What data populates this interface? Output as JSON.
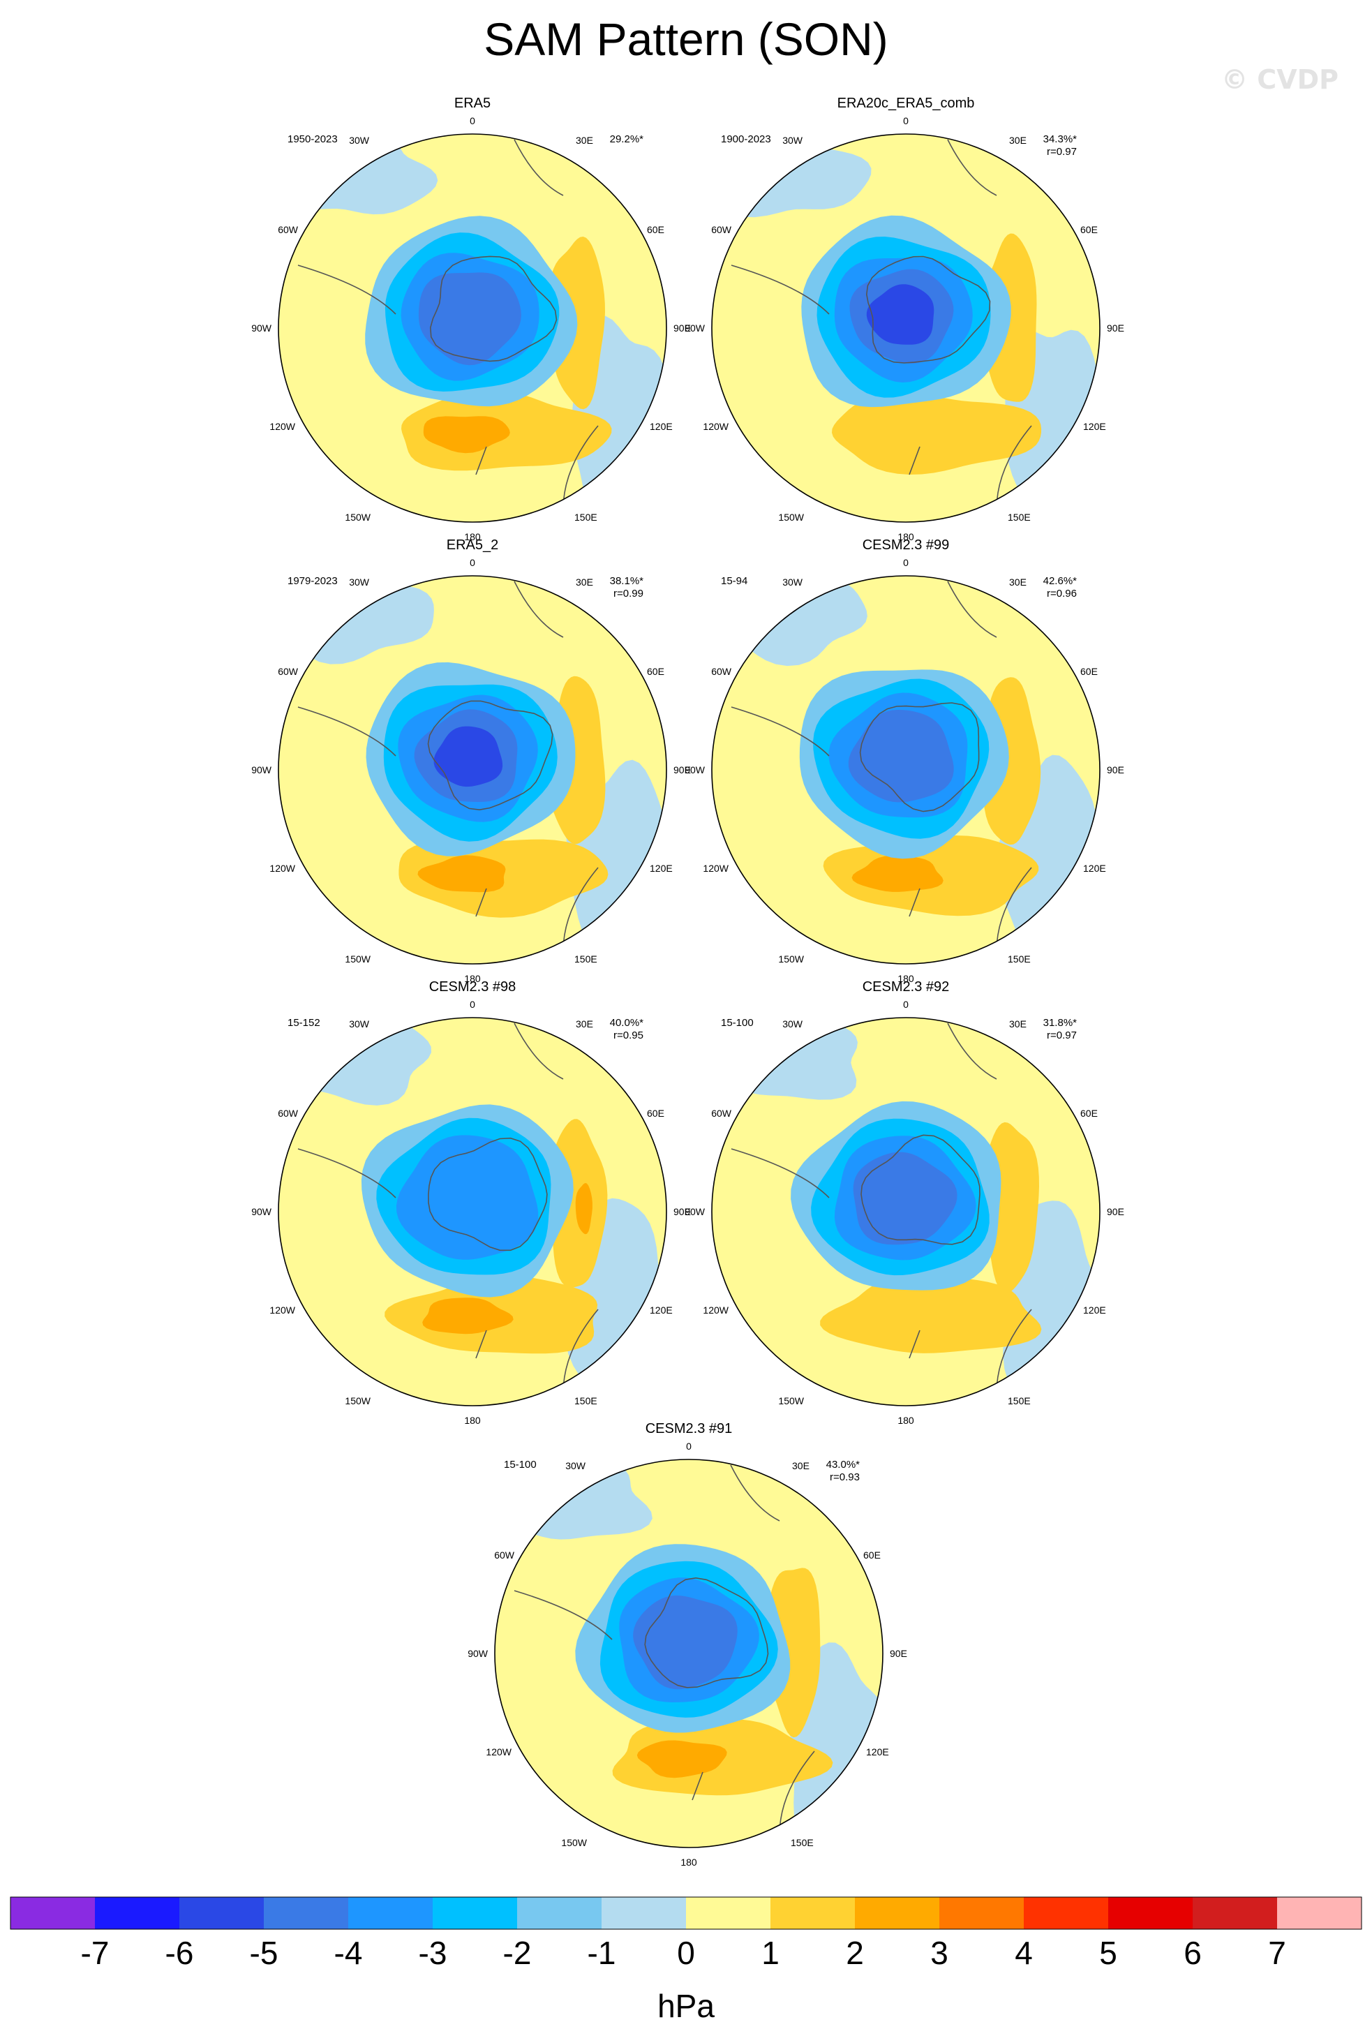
{
  "title": "SAM Pattern (SON)",
  "watermark": "© CVDP",
  "unit_label": "hPa",
  "colorbar": {
    "ticks": [
      "-7",
      "-6",
      "-5",
      "-4",
      "-3",
      "-2",
      "-1",
      "0",
      "1",
      "2",
      "3",
      "4",
      "5",
      "6",
      "7"
    ],
    "colors": [
      "#8a2be2",
      "#1a1aff",
      "#2a48e6",
      "#3a7ae6",
      "#1e96ff",
      "#00c0ff",
      "#78c8f0",
      "#b4dcf0",
      "#fffa96",
      "#ffd232",
      "#ffaa00",
      "#ff7800",
      "#ff3200",
      "#e60000",
      "#d21e1e",
      "#ffb4b4"
    ]
  },
  "map_labels": {
    "top": "0",
    "bottom": "180",
    "left": "90W",
    "right": "90E",
    "ul1": "30W",
    "ul2": "60W",
    "ur1": "30E",
    "ur2": "60E",
    "ll1": "120W",
    "ll2": "150W",
    "lr1": "120E",
    "lr2": "150E"
  },
  "chart_data": [
    {
      "type": "map",
      "title": "ERA5",
      "period": "1950-2023",
      "pct": "29.2%*",
      "r": "",
      "fields": {
        "antarctic_low_min_hPa": -4,
        "pacific_high_max_hPa": 3,
        "indian_high_max_hPa": 2
      }
    },
    {
      "type": "map",
      "title": "ERA20c_ERA5_comb",
      "period": "1900-2023",
      "pct": "34.3%*",
      "r": "r=0.97",
      "fields": {
        "antarctic_low_min_hPa": -5,
        "pacific_high_max_hPa": 2,
        "indian_high_max_hPa": 2
      }
    },
    {
      "type": "map",
      "title": "ERA5_2",
      "period": "1979-2023",
      "pct": "38.1%*",
      "r": "r=0.99",
      "fields": {
        "antarctic_low_min_hPa": -5,
        "pacific_high_max_hPa": 3,
        "indian_high_max_hPa": 2
      }
    },
    {
      "type": "map",
      "title": "CESM2.3 #99",
      "period": "15-94",
      "pct": "42.6%*",
      "r": "r=0.96",
      "fields": {
        "antarctic_low_min_hPa": -4,
        "pacific_high_max_hPa": 3,
        "indian_high_max_hPa": 2
      }
    },
    {
      "type": "map",
      "title": "CESM2.3 #98",
      "period": "15-152",
      "pct": "40.0%*",
      "r": "r=0.95",
      "fields": {
        "antarctic_low_min_hPa": -3,
        "pacific_high_max_hPa": 3,
        "indian_high_max_hPa": 3
      }
    },
    {
      "type": "map",
      "title": "CESM2.3 #92",
      "period": "15-100",
      "pct": "31.8%*",
      "r": "r=0.97",
      "fields": {
        "antarctic_low_min_hPa": -4,
        "pacific_high_max_hPa": 2,
        "indian_high_max_hPa": 2
      }
    },
    {
      "type": "map",
      "title": "CESM2.3 #91",
      "period": "15-100",
      "pct": "43.0%*",
      "r": "r=0.93",
      "fields": {
        "antarctic_low_min_hPa": -4,
        "pacific_high_max_hPa": 3,
        "indian_high_max_hPa": 2
      }
    }
  ]
}
